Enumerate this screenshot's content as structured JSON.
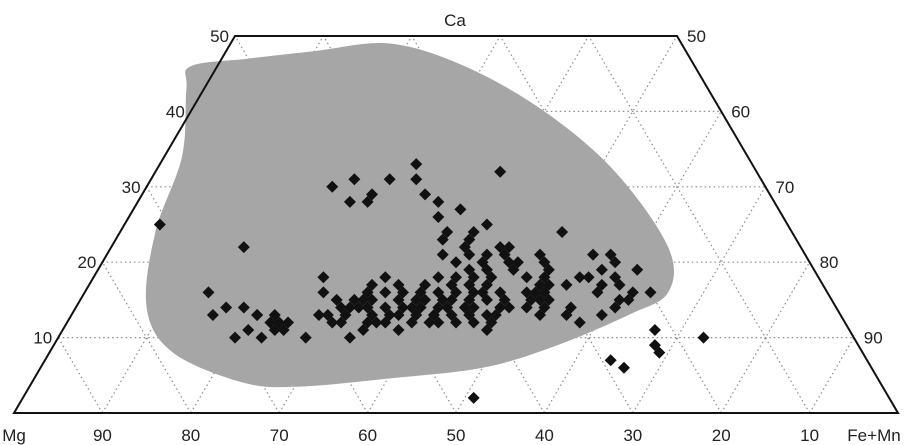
{
  "chart_data": {
    "type": "scatter",
    "subtype": "ternary-trapezoid",
    "apex_label": "Ca",
    "left_label": "Mg",
    "right_label": "Fe+Mn",
    "grid": true,
    "grid_style": "dotted",
    "ca_ticks": [
      "10",
      "20",
      "30",
      "40",
      "50"
    ],
    "fe_mn_ticks": [
      "50",
      "60",
      "70",
      "80",
      "90"
    ],
    "mg_ticks": [
      "90",
      "80",
      "70",
      "60",
      "50",
      "40",
      "30",
      "20",
      "10"
    ],
    "colors": {
      "field": "#a6a6a6",
      "marker": "#111111",
      "frame": "#111111",
      "grid": "#8c8c8c"
    },
    "field": {
      "description": "shaded composition field",
      "outline": [
        [
          13,
          24
        ],
        [
          9,
          34
        ],
        [
          6,
          44
        ],
        [
          4.5,
          56
        ],
        [
          3.5,
          66
        ],
        [
          4,
          72
        ],
        [
          8,
          78
        ],
        [
          14,
          78
        ],
        [
          24,
          72
        ],
        [
          34,
          64
        ],
        [
          43,
          59
        ],
        [
          46,
          57
        ],
        [
          47,
          50
        ],
        [
          48,
          42
        ],
        [
          49,
          33
        ],
        [
          46,
          26
        ],
        [
          40,
          20
        ],
        [
          32,
          16
        ],
        [
          22,
          15
        ],
        [
          16,
          18
        ],
        [
          13,
          24
        ]
      ]
    },
    "points_axes": [
      "Ca",
      "Mg"
    ],
    "points": [
      [
        25,
        71
      ],
      [
        16,
        70
      ],
      [
        14,
        69
      ],
      [
        13,
        71
      ],
      [
        14,
        67
      ],
      [
        11,
        68
      ],
      [
        13,
        66
      ],
      [
        12,
        65
      ],
      [
        10,
        67
      ],
      [
        12,
        64
      ],
      [
        11,
        65
      ],
      [
        13,
        64
      ],
      [
        12,
        63
      ],
      [
        11,
        64
      ],
      [
        10,
        62
      ],
      [
        13,
        66
      ],
      [
        10,
        70
      ],
      [
        22,
        63
      ],
      [
        13,
        59
      ],
      [
        12,
        58
      ],
      [
        13,
        58
      ],
      [
        15,
        56
      ],
      [
        14,
        56
      ],
      [
        16,
        57
      ],
      [
        12,
        57
      ],
      [
        13,
        56
      ],
      [
        10,
        57
      ],
      [
        14,
        55
      ],
      [
        18,
        56
      ],
      [
        12,
        54
      ],
      [
        14,
        53
      ],
      [
        15,
        52
      ],
      [
        13,
        53
      ],
      [
        11,
        55
      ],
      [
        14,
        54
      ],
      [
        12,
        53
      ],
      [
        15,
        54
      ],
      [
        13,
        51
      ],
      [
        17,
        51
      ],
      [
        16,
        50
      ],
      [
        14,
        51
      ],
      [
        12,
        52
      ],
      [
        15,
        53
      ],
      [
        16,
        52
      ],
      [
        13,
        50
      ],
      [
        14,
        49
      ],
      [
        12,
        49
      ],
      [
        11,
        51
      ],
      [
        15,
        49
      ],
      [
        16,
        48
      ],
      [
        14,
        48
      ],
      [
        18,
        49
      ],
      [
        17,
        48
      ],
      [
        15,
        47
      ],
      [
        16,
        46
      ],
      [
        13,
        48
      ],
      [
        14,
        47
      ],
      [
        17,
        45
      ],
      [
        12,
        47
      ],
      [
        15,
        46
      ],
      [
        13,
        46
      ],
      [
        16,
        44
      ],
      [
        14,
        45
      ],
      [
        12,
        46
      ],
      [
        15,
        44
      ],
      [
        17,
        42
      ],
      [
        18,
        43
      ],
      [
        14,
        44
      ],
      [
        13,
        44
      ],
      [
        12,
        44
      ],
      [
        15,
        43
      ],
      [
        13,
        42
      ],
      [
        16,
        42
      ],
      [
        14,
        42
      ],
      [
        17,
        40
      ],
      [
        15,
        41
      ],
      [
        12,
        42
      ],
      [
        16,
        40
      ],
      [
        13,
        40
      ],
      [
        18,
        41
      ],
      [
        14,
        41
      ],
      [
        15,
        39
      ],
      [
        12,
        40
      ],
      [
        11,
        41
      ],
      [
        16,
        39
      ],
      [
        14,
        38
      ],
      [
        17,
        38
      ],
      [
        13,
        39
      ],
      [
        18,
        39
      ],
      [
        15,
        37
      ],
      [
        14,
        37
      ],
      [
        16,
        37
      ],
      [
        20,
        40
      ],
      [
        19,
        39
      ],
      [
        20,
        37
      ],
      [
        21,
        38
      ],
      [
        21,
        36
      ],
      [
        19,
        37
      ],
      [
        22,
        38
      ],
      [
        20,
        34
      ],
      [
        18,
        37
      ],
      [
        21,
        34
      ],
      [
        23,
        37
      ],
      [
        22,
        34
      ],
      [
        19,
        34
      ],
      [
        20,
        33
      ],
      [
        24,
        36
      ],
      [
        25,
        34
      ],
      [
        22,
        33
      ],
      [
        27,
        36
      ],
      [
        26,
        39
      ],
      [
        24,
        39
      ],
      [
        23,
        40
      ],
      [
        21,
        41
      ],
      [
        29,
        39
      ],
      [
        28,
        38
      ],
      [
        31,
        39
      ],
      [
        31,
        42
      ],
      [
        29,
        45
      ],
      [
        28,
        46
      ],
      [
        30,
        49
      ],
      [
        28,
        48
      ],
      [
        31,
        46
      ],
      [
        33,
        38
      ],
      [
        32,
        29
      ],
      [
        18,
        31
      ],
      [
        21,
        30
      ],
      [
        17,
        29
      ],
      [
        19,
        30
      ],
      [
        20,
        30
      ],
      [
        17,
        31
      ],
      [
        16,
        32
      ],
      [
        15,
        32
      ],
      [
        14,
        33
      ],
      [
        13,
        34
      ],
      [
        15,
        34
      ],
      [
        14,
        35
      ],
      [
        16,
        34
      ],
      [
        15,
        33
      ],
      [
        18,
        33
      ],
      [
        16,
        33
      ],
      [
        17,
        32
      ],
      [
        13,
        31
      ],
      [
        14,
        30
      ],
      [
        12,
        30
      ],
      [
        17,
        25
      ],
      [
        18,
        27
      ],
      [
        14,
        25
      ],
      [
        13,
        27
      ],
      [
        16,
        26
      ],
      [
        18,
        26
      ],
      [
        21,
        24
      ],
      [
        24,
        26
      ],
      [
        21,
        22
      ],
      [
        19,
        24
      ],
      [
        18,
        23
      ],
      [
        15,
        24
      ],
      [
        15,
        23
      ],
      [
        17,
        23
      ],
      [
        16,
        22
      ],
      [
        20,
        22
      ],
      [
        16,
        20
      ],
      [
        19,
        20
      ],
      [
        8,
        23
      ],
      [
        9,
        23
      ],
      [
        10,
        17
      ],
      [
        2,
        47
      ],
      [
        11,
        22
      ],
      [
        6,
        28
      ],
      [
        7,
        29
      ]
    ]
  }
}
